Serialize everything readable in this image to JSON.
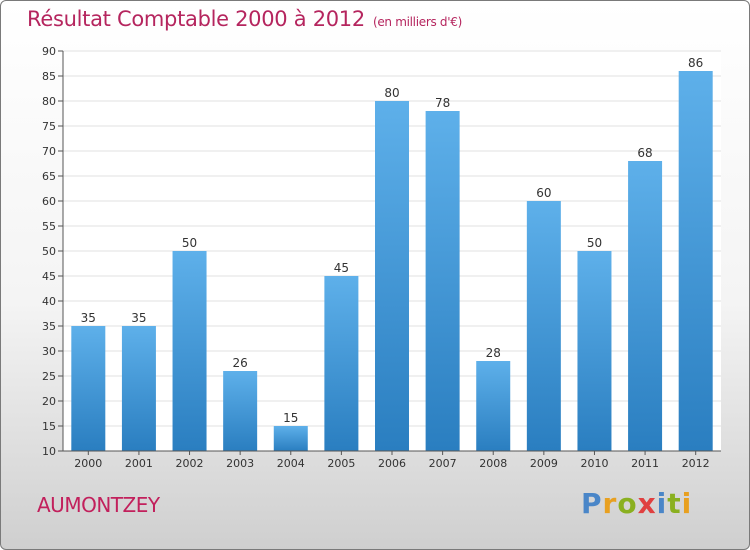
{
  "header": {
    "title": "Résultat Comptable 2000 à 2012",
    "subtitle": "(en milliers d'€)"
  },
  "footer": {
    "commune": "AUMONTZEY",
    "brand": "Proxiti"
  },
  "colors": {
    "title": "#b5255e",
    "bar_top": "#5eb0ea",
    "bar_bottom": "#2a7ec0",
    "brand_letters": [
      "#4a86c8",
      "#e8a020",
      "#8ab020",
      "#e04040",
      "#4a86c8",
      "#8ab020",
      "#e8a020"
    ]
  },
  "chart_data": {
    "type": "bar",
    "title": "Résultat Comptable 2000 à 2012",
    "subtitle": "(en milliers d'€)",
    "categories": [
      "2000",
      "2001",
      "2002",
      "2003",
      "2004",
      "2005",
      "2006",
      "2007",
      "2008",
      "2009",
      "2010",
      "2011",
      "2012"
    ],
    "values": [
      35,
      35,
      50,
      26,
      15,
      45,
      80,
      78,
      28,
      60,
      50,
      68,
      86
    ],
    "ylim": [
      10,
      90
    ],
    "yticks": [
      10,
      15,
      20,
      25,
      30,
      35,
      40,
      45,
      50,
      55,
      60,
      65,
      70,
      75,
      80,
      85,
      90
    ],
    "xlabel": "",
    "ylabel": "",
    "grid": true
  }
}
